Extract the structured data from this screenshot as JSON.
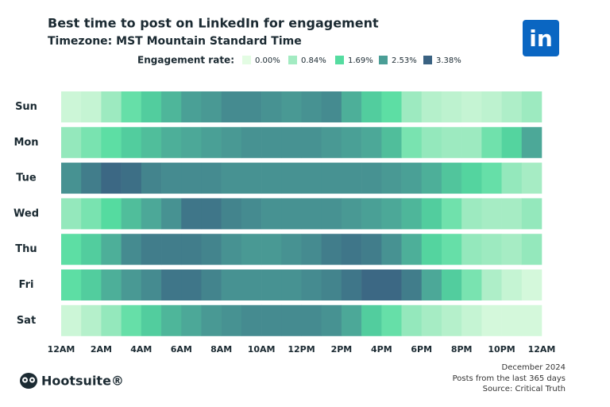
{
  "chart_data": {
    "type": "heatmap",
    "title": "Best time to post on LinkedIn for engagement",
    "subtitle": "Timezone: MST   Mountain Standard Time",
    "logo_text": "in",
    "brand": "Hootsuite®",
    "notes": [
      "December 2024",
      "Posts from the last 365 days",
      "Source: Critical Truth"
    ],
    "legend": {
      "title": "Engagement rate:",
      "ticks": [
        {
          "value": 0,
          "label": "0.00%"
        },
        {
          "value": 0.84,
          "label": "0.84%"
        },
        {
          "value": 1.69,
          "label": "1.69%"
        },
        {
          "value": 2.53,
          "label": "2.53%"
        },
        {
          "value": 3.38,
          "label": "3.38%"
        }
      ],
      "colors": [
        "#e3fce3",
        "#a3ebc2",
        "#55dca0",
        "#4a9e96",
        "#3a6282"
      ]
    },
    "rows": [
      "Sun",
      "Mon",
      "Tue",
      "Wed",
      "Thu",
      "Fri",
      "Sat"
    ],
    "xlim": [
      0,
      24
    ],
    "xticks": [
      {
        "value": 0,
        "label": "12AM"
      },
      {
        "value": 2,
        "label": "2AM"
      },
      {
        "value": 4,
        "label": "4AM"
      },
      {
        "value": 6,
        "label": "6AM"
      },
      {
        "value": 8,
        "label": "8AM"
      },
      {
        "value": 10,
        "label": "10AM"
      },
      {
        "value": 12,
        "label": "12PM"
      },
      {
        "value": 14,
        "label": "2PM"
      },
      {
        "value": 16,
        "label": "4PM"
      },
      {
        "value": 18,
        "label": "6PM"
      },
      {
        "value": 20,
        "label": "8PM"
      },
      {
        "value": 22,
        "label": "10PM"
      },
      {
        "value": 24,
        "label": "12AM"
      }
    ],
    "values": [
      [
        0.3,
        0.4,
        0.9,
        1.5,
        1.9,
        2.2,
        2.5,
        2.6,
        2.8,
        2.8,
        2.7,
        2.6,
        2.7,
        2.8,
        2.3,
        1.9,
        1.6,
        0.9,
        0.6,
        0.5,
        0.4,
        0.5,
        0.7,
        0.9
      ],
      [
        1.0,
        1.3,
        1.6,
        1.9,
        2.1,
        2.3,
        2.4,
        2.5,
        2.6,
        2.7,
        2.7,
        2.7,
        2.7,
        2.6,
        2.5,
        2.4,
        2.1,
        1.3,
        1.0,
        0.9,
        0.9,
        1.4,
        1.8,
        2.4
      ],
      [
        2.7,
        3.0,
        3.3,
        3.2,
        2.9,
        2.8,
        2.8,
        2.8,
        2.7,
        2.7,
        2.7,
        2.7,
        2.7,
        2.7,
        2.7,
        2.7,
        2.6,
        2.5,
        2.3,
        2.0,
        1.8,
        1.5,
        1.0,
        0.8
      ],
      [
        1.0,
        1.3,
        1.7,
        2.1,
        2.4,
        2.7,
        3.1,
        3.1,
        2.9,
        2.8,
        2.7,
        2.7,
        2.7,
        2.7,
        2.6,
        2.5,
        2.4,
        2.2,
        1.9,
        1.4,
        0.9,
        0.8,
        0.8,
        1.0
      ],
      [
        1.6,
        1.9,
        2.3,
        2.8,
        3.0,
        3.0,
        3.0,
        2.9,
        2.7,
        2.6,
        2.6,
        2.7,
        2.8,
        3.0,
        3.1,
        3.0,
        2.7,
        2.3,
        1.8,
        1.5,
        1.0,
        0.9,
        0.8,
        1.0
      ],
      [
        1.6,
        1.9,
        2.3,
        2.6,
        2.8,
        3.1,
        3.1,
        2.9,
        2.7,
        2.7,
        2.7,
        2.7,
        2.8,
        2.9,
        3.1,
        3.3,
        3.3,
        3.0,
        2.4,
        1.9,
        1.3,
        0.7,
        0.4,
        0.2
      ],
      [
        0.3,
        0.6,
        1.0,
        1.5,
        1.9,
        2.2,
        2.4,
        2.6,
        2.7,
        2.8,
        2.8,
        2.8,
        2.8,
        2.7,
        2.4,
        1.9,
        1.5,
        1.0,
        0.8,
        0.6,
        0.4,
        0.2,
        0.2,
        0.2
      ]
    ]
  }
}
